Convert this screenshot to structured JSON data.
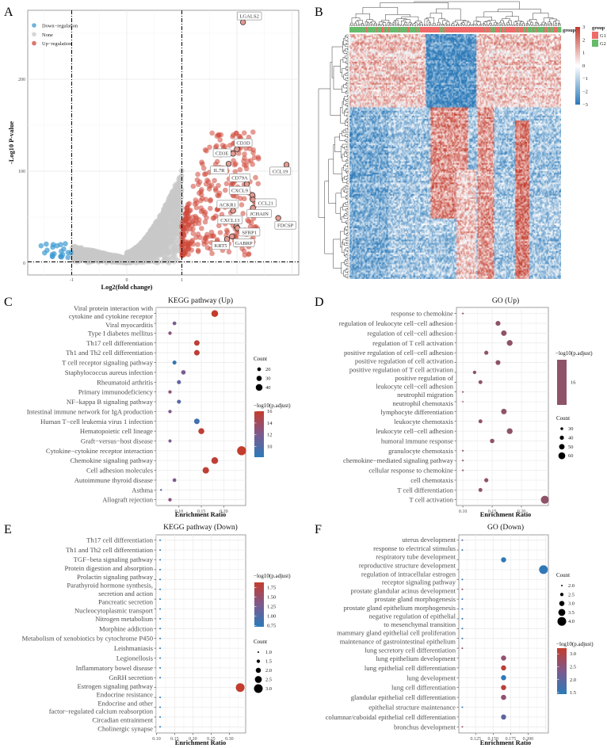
{
  "panel_letters": [
    "A",
    "B",
    "C",
    "D",
    "E",
    "F"
  ],
  "chart_data": [
    {
      "type": "scatter",
      "id": "volcano",
      "xlabel": "Log2(fold change)",
      "ylabel": "-Log10 P-value",
      "xlim": [
        -1.8,
        3.13
      ],
      "ylim": [
        -13,
        275
      ],
      "xticks": [
        "-1",
        "0",
        "1"
      ],
      "xtick_values": [
        -1,
        0,
        1
      ],
      "yticks": [
        "0",
        "100",
        "200"
      ],
      "ytick_values": [
        0,
        100,
        200
      ],
      "thresholds": {
        "log2fc": [
          -1,
          1
        ],
        "neg_log10_p": 1.3
      },
      "legend": [
        {
          "label": "Down−regulation",
          "color": "#3d9ad1"
        },
        {
          "label": "None",
          "color": "#c8c8c8"
        },
        {
          "label": "Up−regulation",
          "color": "#d0493a"
        }
      ],
      "approx_point_counts": {
        "down": 22,
        "none": 2600,
        "up": 330
      },
      "labeled_genes": [
        {
          "label": "LGALS2",
          "x": 2.11,
          "y": 262
        },
        {
          "label": "CD3D",
          "x": 2.0,
          "y": 124
        },
        {
          "label": "CD3E",
          "x": 1.93,
          "y": 119
        },
        {
          "label": "IL7R",
          "x": 1.85,
          "y": 108
        },
        {
          "label": "CCL19",
          "x": 2.9,
          "y": 107
        },
        {
          "label": "CD79A",
          "x": 2.18,
          "y": 86
        },
        {
          "label": "CXCL9",
          "x": 2.28,
          "y": 74
        },
        {
          "label": "CCL21",
          "x": 2.29,
          "y": 69
        },
        {
          "label": "JCHAIN",
          "x": 2.29,
          "y": 60
        },
        {
          "label": "ACKR1",
          "x": 1.93,
          "y": 57
        },
        {
          "label": "FDCSP",
          "x": 2.75,
          "y": 49
        },
        {
          "label": "CXCL13",
          "x": 1.99,
          "y": 40
        },
        {
          "label": "SFRP1",
          "x": 2.01,
          "y": 38
        },
        {
          "label": "GABRP",
          "x": 1.91,
          "y": 29
        },
        {
          "label": "KRT5",
          "x": 1.82,
          "y": 26
        }
      ]
    },
    {
      "type": "heatmap",
      "id": "heatmap",
      "annotation_label": "group",
      "colorbar_ticks": [
        "3",
        "2",
        "1",
        "0",
        "−1",
        "−2",
        "−3"
      ],
      "colorbar_values": [
        3,
        2,
        1,
        0,
        -1,
        -2,
        -3
      ],
      "colors": {
        "low": "#2a78b8",
        "mid": "#ffffff",
        "high": "#c23a2c"
      },
      "group_legend": {
        "title": "group",
        "items": [
          {
            "label": "G1",
            "color": "#ee6a6a"
          },
          {
            "label": "G2",
            "color": "#66bb6a"
          }
        ]
      }
    },
    {
      "type": "scatter",
      "id": "kegg_up",
      "title": "KEGG pathway (Up)",
      "xlabel": "Enrichment Ratio",
      "xlim": [
        0.049,
        0.249
      ],
      "xticks": [
        "0.10",
        "0.15",
        "0.20"
      ],
      "xtick_values": [
        0.1,
        0.15,
        0.2
      ],
      "size_title": "Count",
      "size_domain": [
        5,
        55
      ],
      "size_legend": [
        {
          "label": "20",
          "value": 20
        },
        {
          "label": "30",
          "value": 30
        },
        {
          "label": "40",
          "value": 40
        }
      ],
      "color_title": "−log10(p.adjust)",
      "color_lim": [
        8.2,
        16
      ],
      "color_legend": [
        {
          "label": "16",
          "value": 16
        },
        {
          "label": "14",
          "value": 14
        },
        {
          "label": "12",
          "value": 12
        },
        {
          "label": "10",
          "value": 10
        }
      ],
      "rows": [
        {
          "label": [
            "Viral protein interaction with",
            "cytokine and cytokine receptor"
          ],
          "x": 0.18,
          "count": 40,
          "color": 16
        },
        {
          "label": "Viral myocarditis",
          "x": 0.09,
          "count": 20,
          "color": 12
        },
        {
          "label": "Type I diabetes mellitus",
          "x": 0.08,
          "count": 18,
          "color": 12.8
        },
        {
          "label": "Th17 cell differentiation",
          "x": 0.14,
          "count": 32,
          "color": 15.6
        },
        {
          "label": "Th1 and Th2 cell differentiation",
          "x": 0.14,
          "count": 32,
          "color": 15.6
        },
        {
          "label": "T cell receptor signaling pathway",
          "x": 0.09,
          "count": 22,
          "color": 8.8
        },
        {
          "label": "Staphylococcus aureus infection",
          "x": 0.11,
          "count": 25,
          "color": 12
        },
        {
          "label": "Rheumatoid arthritis",
          "x": 0.1,
          "count": 22,
          "color": 10.6
        },
        {
          "label": "Primary immunodeficiency",
          "x": 0.08,
          "count": 18,
          "color": 12.8
        },
        {
          "label": "NF−kappa B signaling pathway",
          "x": 0.1,
          "count": 22,
          "color": 10.2
        },
        {
          "label": "Intestinal immune network for IgA production",
          "x": 0.08,
          "count": 18,
          "color": 12.2
        },
        {
          "label": "Human T−cell leukemia virus 1 infection",
          "x": 0.14,
          "count": 32,
          "color": 9.2
        },
        {
          "label": "Hematopoietic cell lineage",
          "x": 0.15,
          "count": 35,
          "color": 15.6
        },
        {
          "label": "Graft−versus−host disease",
          "x": 0.08,
          "count": 16,
          "color": 12
        },
        {
          "label": "Cytokine−cytokine receptor interaction",
          "x": 0.24,
          "count": 55,
          "color": 16
        },
        {
          "label": "Chemokine signaling pathway",
          "x": 0.18,
          "count": 40,
          "color": 15.6
        },
        {
          "label": "Cell adhesion molecules",
          "x": 0.16,
          "count": 38,
          "color": 15.6
        },
        {
          "label": "Autoimmune thyroid disease",
          "x": 0.09,
          "count": 20,
          "color": 12
        },
        {
          "label": "Asthma",
          "x": 0.06,
          "count": 8,
          "color": 10.4
        },
        {
          "label": "Allograft rejection",
          "x": 0.08,
          "count": 18,
          "color": 12.8
        }
      ]
    },
    {
      "type": "scatter",
      "id": "go_up",
      "title": "GO (Up)",
      "xlabel": "Enrichment Ratio",
      "xlim": [
        0.089,
        0.246
      ],
      "xticks": [
        "0.10",
        "0.15",
        "0.20"
      ],
      "xtick_values": [
        0.1,
        0.15,
        0.2
      ],
      "size_title": "Count",
      "size_domain": [
        20,
        70
      ],
      "size_legend": [
        {
          "label": "30",
          "value": 30
        },
        {
          "label": "40",
          "value": 40
        },
        {
          "label": "50",
          "value": 50
        },
        {
          "label": "60",
          "value": 60
        }
      ],
      "color_title": "−log10(p.adjust)",
      "single_color": "#8e5369",
      "color_legend": [
        {
          "label": "16",
          "value": 16
        }
      ],
      "rows": [
        {
          "label": "response to chemokine",
          "x": 0.1,
          "count": 22
        },
        {
          "label": "regulation of leukocyte cell−cell adhesion",
          "x": 0.16,
          "count": 45
        },
        {
          "label": "regulation of cell−cell adhesion",
          "x": 0.17,
          "count": 50
        },
        {
          "label": "regulation of T cell activation",
          "x": 0.18,
          "count": 52
        },
        {
          "label": "positive regulation of cell−cell adhesion",
          "x": 0.14,
          "count": 40
        },
        {
          "label": "positive regulation of cell activation",
          "x": 0.16,
          "count": 45
        },
        {
          "label": "positive regulation of T cell activation",
          "x": 0.12,
          "count": 35
        },
        {
          "label": [
            "positive regulation of",
            "leukocyte cell−cell adhesion"
          ],
          "x": 0.13,
          "count": 38
        },
        {
          "label": "neutrophil migration",
          "x": 0.1,
          "count": 22
        },
        {
          "label": "neutrophil chemotaxis",
          "x": 0.1,
          "count": 20
        },
        {
          "label": "lymphocyte differentiation",
          "x": 0.17,
          "count": 50
        },
        {
          "label": "leukocyte chemotaxis",
          "x": 0.13,
          "count": 38
        },
        {
          "label": "leukocyte cell−cell adhesion",
          "x": 0.18,
          "count": 52
        },
        {
          "label": "humoral immune response",
          "x": 0.15,
          "count": 42
        },
        {
          "label": "granulocyte chemotaxis",
          "x": 0.1,
          "count": 22
        },
        {
          "label": "chemokine−mediated signaling pathway",
          "x": 0.1,
          "count": 22
        },
        {
          "label": "cellular response to chemokine",
          "x": 0.1,
          "count": 22
        },
        {
          "label": "cell chemotaxis",
          "x": 0.14,
          "count": 40
        },
        {
          "label": "T cell differentiation",
          "x": 0.13,
          "count": 38
        },
        {
          "label": "T cell activation",
          "x": 0.24,
          "count": 68
        }
      ]
    },
    {
      "type": "scatter",
      "id": "kegg_down",
      "title": "KEGG pathway (Down)",
      "xlabel": "Enrichment Ratio",
      "xlim": [
        0.099,
        0.345
      ],
      "xticks": [
        "0.10",
        "0.15",
        "0.20",
        "0.25",
        "0.30"
      ],
      "xtick_values": [
        0.1,
        0.15,
        0.2,
        0.25,
        0.3
      ],
      "size_title": "Count",
      "size_domain": [
        1,
        3
      ],
      "size_legend": [
        {
          "label": "1.0",
          "value": 1
        },
        {
          "label": "1.5",
          "value": 1.5
        },
        {
          "label": "2.0",
          "value": 2
        },
        {
          "label": "2.5",
          "value": 2.5
        },
        {
          "label": "3.0",
          "value": 3
        }
      ],
      "color_title": "−log10(p.adjust)",
      "color_lim": [
        0.72,
        1.89
      ],
      "color_legend": [
        {
          "label": "1.75",
          "value": 1.75
        },
        {
          "label": "1.50",
          "value": 1.5
        },
        {
          "label": "1.25",
          "value": 1.25
        },
        {
          "label": "1.00",
          "value": 1.0
        },
        {
          "label": "0.75",
          "value": 0.75
        }
      ],
      "rows": [
        {
          "label": "Th17 cell differentiation",
          "x": 0.11,
          "count": 1,
          "color": 0.75
        },
        {
          "label": "Th1 and Th2 cell differentiation",
          "x": 0.11,
          "count": 1,
          "color": 0.75
        },
        {
          "label": "TGF−beta signaling pathway",
          "x": 0.11,
          "count": 1,
          "color": 0.75
        },
        {
          "label": "Protein digestion and absorption",
          "x": 0.11,
          "count": 1,
          "color": 0.75
        },
        {
          "label": "Prolactin signaling pathway",
          "x": 0.11,
          "count": 1,
          "color": 0.75
        },
        {
          "label": [
            "Parathyroid hormone synthesis,",
            "secretion and action"
          ],
          "x": 0.11,
          "count": 1,
          "color": 0.75
        },
        {
          "label": "Pancreatic secretion",
          "x": 0.11,
          "count": 1,
          "color": 0.75
        },
        {
          "label": "Nucleocytoplasmic transport",
          "x": 0.11,
          "count": 1,
          "color": 0.75
        },
        {
          "label": "Nitrogen metabolism",
          "x": 0.11,
          "count": 1,
          "color": 0.75
        },
        {
          "label": "Morphine addiction",
          "x": 0.11,
          "count": 1,
          "color": 0.75
        },
        {
          "label": "Metabolism of xenobiotics by cytochrome P450",
          "x": 0.11,
          "count": 1,
          "color": 0.75
        },
        {
          "label": "Leishmaniasis",
          "x": 0.11,
          "count": 1,
          "color": 0.75
        },
        {
          "label": "Legionellosis",
          "x": 0.11,
          "count": 1,
          "color": 0.75
        },
        {
          "label": "Inflammatory bowel disease",
          "x": 0.11,
          "count": 1,
          "color": 0.75
        },
        {
          "label": "GnRH secretion",
          "x": 0.11,
          "count": 1,
          "color": 0.75
        },
        {
          "label": "Estrogen signaling pathway",
          "x": 0.33,
          "count": 3,
          "color": 1.89
        },
        {
          "label": "Endocrine resistance",
          "x": 0.11,
          "count": 1,
          "color": 0.75
        },
        {
          "label": [
            "Endocrine and other",
            "factor−regulated calcium reabsorption"
          ],
          "x": 0.11,
          "count": 1,
          "color": 0.75
        },
        {
          "label": "Circadian entrainment",
          "x": 0.11,
          "count": 1,
          "color": 0.75
        },
        {
          "label": "Cholinergic synapse",
          "x": 0.11,
          "count": 1,
          "color": 0.75
        }
      ]
    },
    {
      "type": "scatter",
      "id": "go_down",
      "title": "GO (Down)",
      "xlabel": "Enrichment Ratio",
      "xlim": [
        0.101,
        0.229
      ],
      "xticks": [
        "0.125",
        "0.150",
        "0.175",
        "0.200"
      ],
      "xtick_values": [
        0.125,
        0.15,
        0.175,
        0.2
      ],
      "size_title": "Count",
      "size_domain": [
        2,
        4
      ],
      "size_legend": [
        {
          "label": "2.0",
          "value": 2
        },
        {
          "label": "2.5",
          "value": 2.5
        },
        {
          "label": "3.0",
          "value": 3
        },
        {
          "label": "3.5",
          "value": 3.5
        },
        {
          "label": "4.0",
          "value": 4
        }
      ],
      "color_title": "−log10(p.adjust)",
      "color_lim": [
        1.44,
        3.22
      ],
      "color_legend": [
        {
          "label": "3.0",
          "value": 3.0
        },
        {
          "label": "2.5",
          "value": 2.5
        },
        {
          "label": "2.0",
          "value": 2.0
        },
        {
          "label": "1.5",
          "value": 1.5
        }
      ],
      "rows": [
        {
          "label": "uterus development",
          "x": 0.106,
          "count": 2,
          "color": 1.9
        },
        {
          "label": "response to electrical stimulus",
          "x": 0.106,
          "count": 2,
          "color": 1.5
        },
        {
          "label": "respiratory tube development",
          "x": 0.165,
          "count": 3,
          "color": 1.5
        },
        {
          "label": "reproductive structure development",
          "x": 0.222,
          "count": 4,
          "color": 1.5
        },
        {
          "label": [
            "regulation of intracellular estrogen",
            "receptor signaling pathway"
          ],
          "x": 0.106,
          "count": 2,
          "color": 1.5
        },
        {
          "label": "prostate glandular acinus development",
          "x": 0.106,
          "count": 2,
          "color": 2.7
        },
        {
          "label": "prostate gland morphogenesis",
          "x": 0.106,
          "count": 2,
          "color": 1.6
        },
        {
          "label": "prostate gland epithelium morphogenesis",
          "x": 0.106,
          "count": 2,
          "color": 1.6
        },
        {
          "label": [
            "negative regulation of epithelial",
            "to mesenchymal transition"
          ],
          "x": 0.106,
          "count": 2,
          "color": 1.5
        },
        {
          "label": "mammary gland epithelial cell proliferation",
          "x": 0.106,
          "count": 2,
          "color": 1.6
        },
        {
          "label": "maintenance of gastrointestinal epithelium",
          "x": 0.106,
          "count": 2,
          "color": 1.6
        },
        {
          "label": "lung secretory cell differentiation",
          "x": 0.106,
          "count": 2,
          "color": 2.7
        },
        {
          "label": "lung epithelium development",
          "x": 0.165,
          "count": 3,
          "color": 2.6
        },
        {
          "label": "lung epithelial cell differentiation",
          "x": 0.165,
          "count": 3,
          "color": 3.1
        },
        {
          "label": "lung development",
          "x": 0.165,
          "count": 3,
          "color": 1.5
        },
        {
          "label": "lung cell differentiation",
          "x": 0.165,
          "count": 3,
          "color": 3.1
        },
        {
          "label": "glandular epithelial cell differentiation",
          "x": 0.165,
          "count": 3,
          "color": 2.6
        },
        {
          "label": "epithelial structure maintenance",
          "x": 0.106,
          "count": 2,
          "color": 1.5
        },
        {
          "label": "columnar/cuboidal epithelial cell differentiation",
          "x": 0.165,
          "count": 3,
          "color": 2.0
        },
        {
          "label": "bronchus development",
          "x": 0.106,
          "count": 2,
          "color": 2.7
        }
      ]
    }
  ]
}
